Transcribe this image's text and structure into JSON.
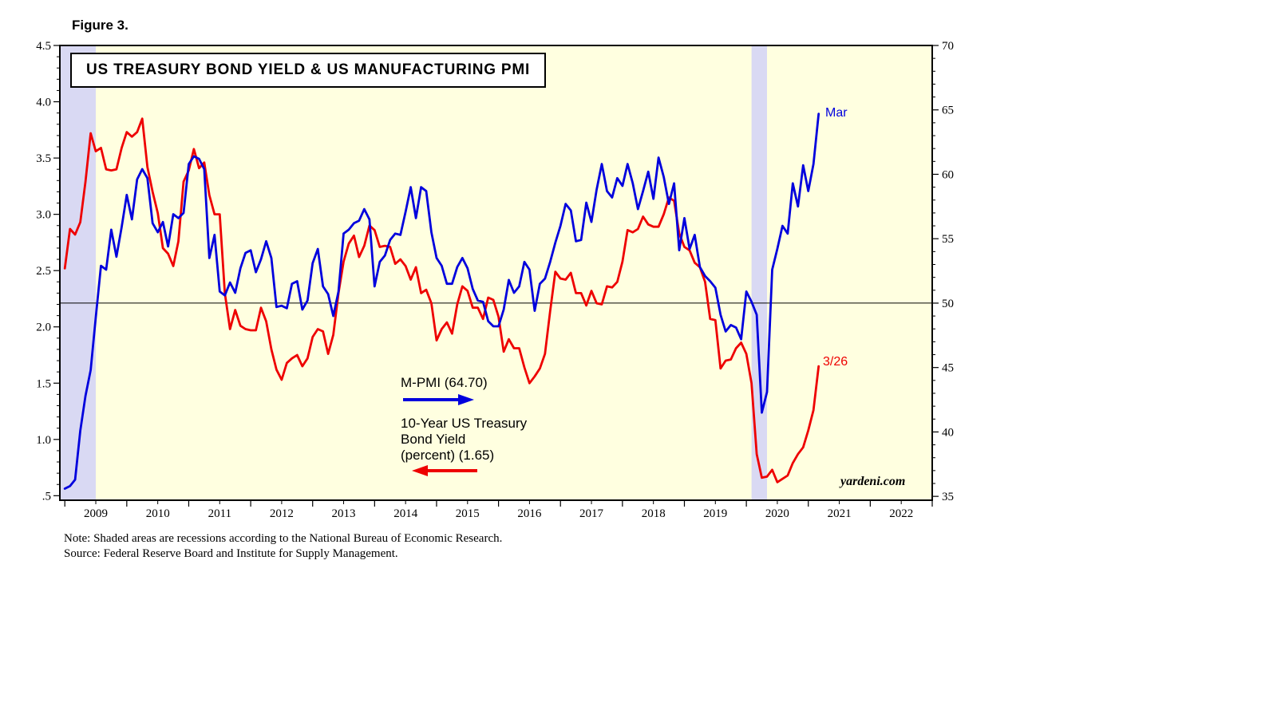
{
  "figure_label": "Figure 3.",
  "title": "US TREASURY BOND YIELD & US MANUFACTURING PMI",
  "annotations": {
    "pmi_label": "M-PMI (64.70)",
    "yield_label_line1": "10-Year US Treasury",
    "yield_label_line2": "Bond Yield",
    "yield_label_line3": "(percent) (1.65)",
    "pmi_last_label": "Mar",
    "yield_last_label": "3/26",
    "watermark": "yardeni.com"
  },
  "notes": {
    "note": "Note: Shaded areas are recessions according to the National Bureau of Economic Research.",
    "source": "Source: Federal Reserve Board and Institute for Supply Management."
  },
  "colors": {
    "pmi": "#0000DD",
    "yield": "#EE0000",
    "plot_bg": "#FFFFE0",
    "recession_band": "#D9D9F3",
    "axis": "#000000"
  },
  "chart_data": {
    "type": "line",
    "title": "US TREASURY BOND YIELD & US MANUFACTURING PMI",
    "x_interval": "monthly",
    "x_start_year": 2009,
    "x_range": [
      2008.92,
      2023
    ],
    "x_tick_labels": [
      "2009",
      "2010",
      "2011",
      "2012",
      "2013",
      "2014",
      "2015",
      "2016",
      "2017",
      "2018",
      "2019",
      "2020",
      "2021",
      "2022"
    ],
    "left_axis": {
      "name": "10-Year US Treasury Bond Yield (percent)",
      "range": [
        0.46,
        4.5
      ],
      "tick_values": [
        4.5,
        4.0,
        3.5,
        3.0,
        2.5,
        2.0,
        1.5,
        1.0,
        0.5
      ],
      "tick_labels": [
        "4.5",
        "4.0",
        "3.5",
        "3.0",
        "2.5",
        "2.0",
        "1.5",
        "1.0",
        ".5"
      ]
    },
    "right_axis": {
      "name": "US Manufacturing PMI",
      "range": [
        34.7,
        70
      ],
      "tick_values": [
        70,
        65,
        60,
        55,
        50,
        45,
        40,
        35
      ],
      "tick_labels": [
        "70",
        "65",
        "60",
        "55",
        "50",
        "45",
        "40",
        "35"
      ]
    },
    "reference_line": {
      "axis": "right",
      "value": 50
    },
    "recession_bands": [
      [
        2008.92,
        2009.5
      ],
      [
        2020.083,
        2020.333
      ]
    ],
    "series": [
      {
        "name": "10-Year US Treasury Bond Yield (percent)",
        "axis": "left",
        "color_key": "yield",
        "last_point_label": "3/26",
        "last_value": 1.65,
        "values": [
          2.52,
          2.87,
          2.82,
          2.93,
          3.29,
          3.72,
          3.56,
          3.59,
          3.4,
          3.39,
          3.4,
          3.59,
          3.73,
          3.69,
          3.73,
          3.85,
          3.42,
          3.2,
          3.01,
          2.7,
          2.65,
          2.54,
          2.76,
          3.29,
          3.39,
          3.58,
          3.41,
          3.46,
          3.17,
          3.0,
          3.0,
          2.3,
          1.98,
          2.15,
          2.01,
          1.98,
          1.97,
          1.97,
          2.17,
          2.05,
          1.8,
          1.62,
          1.53,
          1.68,
          1.72,
          1.75,
          1.65,
          1.72,
          1.91,
          1.98,
          1.96,
          1.76,
          1.93,
          2.3,
          2.58,
          2.74,
          2.81,
          2.62,
          2.72,
          2.9,
          2.86,
          2.71,
          2.72,
          2.71,
          2.56,
          2.6,
          2.54,
          2.42,
          2.53,
          2.3,
          2.33,
          2.21,
          1.88,
          1.98,
          2.04,
          1.94,
          2.2,
          2.36,
          2.32,
          2.17,
          2.17,
          2.07,
          2.26,
          2.24,
          2.09,
          1.78,
          1.89,
          1.81,
          1.81,
          1.64,
          1.5,
          1.56,
          1.63,
          1.76,
          2.14,
          2.49,
          2.43,
          2.42,
          2.48,
          2.3,
          2.3,
          2.19,
          2.32,
          2.21,
          2.2,
          2.36,
          2.35,
          2.4,
          2.58,
          2.86,
          2.84,
          2.87,
          2.98,
          2.91,
          2.89,
          2.89,
          3.0,
          3.15,
          3.12,
          2.83,
          2.71,
          2.68,
          2.57,
          2.53,
          2.4,
          2.07,
          2.06,
          1.63,
          1.7,
          1.71,
          1.81,
          1.86,
          1.76,
          1.5,
          0.87,
          0.66,
          0.67,
          0.73,
          0.62,
          0.65,
          0.68,
          0.79,
          0.87,
          0.93,
          1.08,
          1.26,
          1.65
        ]
      },
      {
        "name": "M-PMI",
        "axis": "right",
        "color_key": "pmi",
        "last_point_label": "Mar",
        "last_value": 64.7,
        "values": [
          35.6,
          35.8,
          36.3,
          40.1,
          42.8,
          44.8,
          48.9,
          52.9,
          52.6,
          55.7,
          53.6,
          55.9,
          58.4,
          56.5,
          59.6,
          60.4,
          59.7,
          56.2,
          55.5,
          56.3,
          54.4,
          56.9,
          56.6,
          57.0,
          60.8,
          61.4,
          61.2,
          60.4,
          53.5,
          55.3,
          50.9,
          50.6,
          51.6,
          50.8,
          52.7,
          53.9,
          54.1,
          52.4,
          53.4,
          54.8,
          53.5,
          49.7,
          49.8,
          49.6,
          51.5,
          51.7,
          49.5,
          50.2,
          53.1,
          54.2,
          51.3,
          50.7,
          49.0,
          50.9,
          55.4,
          55.7,
          56.2,
          56.4,
          57.3,
          56.5,
          51.3,
          53.2,
          53.7,
          54.9,
          55.4,
          55.3,
          57.1,
          59.0,
          56.6,
          59.0,
          58.7,
          55.5,
          53.5,
          52.9,
          51.5,
          51.5,
          52.8,
          53.5,
          52.7,
          51.1,
          50.2,
          50.1,
          48.6,
          48.2,
          48.2,
          49.5,
          51.8,
          50.8,
          51.3,
          53.2,
          52.6,
          49.4,
          51.5,
          51.9,
          53.2,
          54.7,
          56.0,
          57.7,
          57.2,
          54.8,
          54.9,
          57.8,
          56.3,
          58.8,
          60.8,
          58.7,
          58.2,
          59.7,
          59.1,
          60.8,
          59.3,
          57.3,
          58.7,
          60.2,
          58.1,
          61.3,
          59.8,
          57.7,
          59.3,
          54.1,
          56.6,
          54.2,
          55.3,
          52.8,
          52.1,
          51.7,
          51.2,
          49.1,
          47.8,
          48.3,
          48.1,
          47.2,
          50.9,
          50.1,
          49.1,
          41.5,
          43.1,
          52.6,
          54.2,
          56.0,
          55.4,
          59.3,
          57.5,
          60.7,
          58.7,
          60.8,
          64.7
        ]
      }
    ]
  }
}
